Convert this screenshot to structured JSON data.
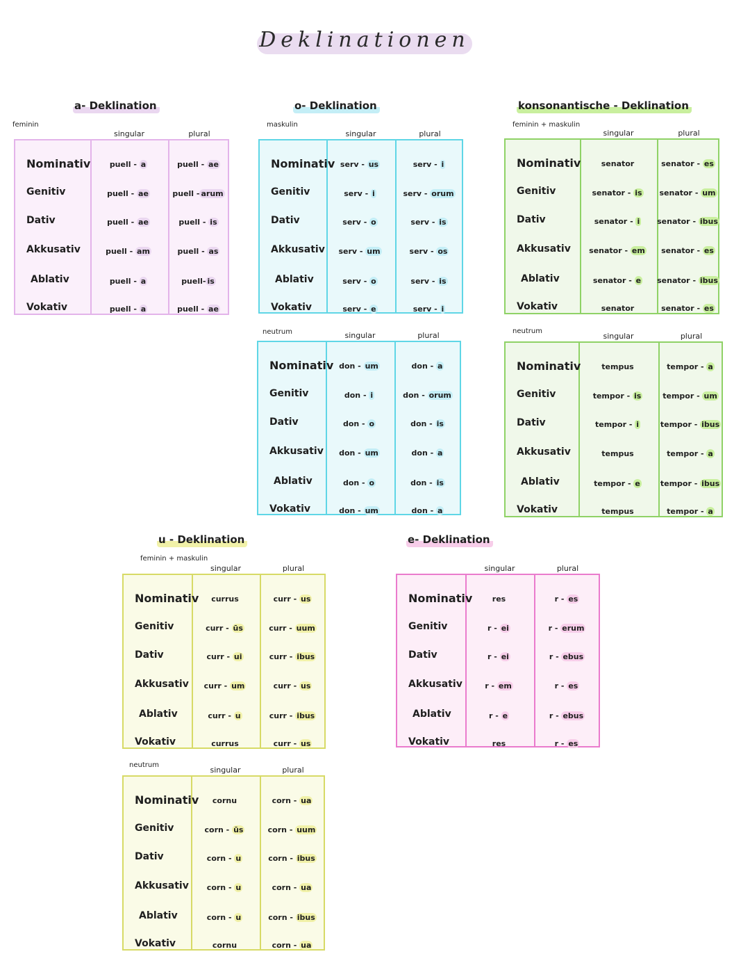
{
  "title": "Deklinationen",
  "colors": {
    "a": {
      "fill": "#fbf0fb",
      "border": "#e3b3ea",
      "hl": "#ead7f0"
    },
    "o": {
      "fill": "#e9f9fb",
      "border": "#5fd6e6",
      "hl": "#c4eef6"
    },
    "kons": {
      "fill": "#f0f8ea",
      "border": "#8fd266",
      "hl": "#c9ef9e"
    },
    "u": {
      "fill": "#fafbe7",
      "border": "#d7da66",
      "hl": "#f1f1a8"
    },
    "e": {
      "fill": "#fdeef8",
      "border": "#ea7bcd",
      "hl": "#f7cde9"
    }
  },
  "blocks": [
    {
      "title": "a- Deklination",
      "sub": "feminin",
      "singular": "singular",
      "plural": "plural",
      "rows": [
        {
          "case": "Nominativ",
          "sg": [
            "puell - ",
            "a"
          ],
          "pl": [
            "puell - ",
            "ae"
          ]
        },
        {
          "case": "Genitiv",
          "sg": [
            "puell - ",
            "ae"
          ],
          "pl": [
            "puell -",
            "arum"
          ]
        },
        {
          "case": "Dativ",
          "sg": [
            "puell - ",
            "ae"
          ],
          "pl": [
            "puell - ",
            "is"
          ]
        },
        {
          "case": "Akkusativ",
          "sg": [
            "puell - ",
            "am"
          ],
          "pl": [
            "puell - ",
            "as"
          ]
        },
        {
          "case": "Ablativ",
          "sg": [
            "puell - ",
            "a"
          ],
          "pl": [
            "puell-",
            "is"
          ]
        },
        {
          "case": "Vokativ",
          "sg": [
            "puell - ",
            "a"
          ],
          "pl": [
            "puell - ",
            "ae"
          ]
        }
      ]
    },
    {
      "title": "o- Deklination",
      "sub": "maskulin",
      "singular": "singular",
      "plural": "plural",
      "rows": [
        {
          "case": "Nominativ",
          "sg": [
            "serv - ",
            "us"
          ],
          "pl": [
            "serv - ",
            "i"
          ]
        },
        {
          "case": "Genitiv",
          "sg": [
            "serv - ",
            "i"
          ],
          "pl": [
            "serv - ",
            "orum"
          ]
        },
        {
          "case": "Dativ",
          "sg": [
            "serv - ",
            "o"
          ],
          "pl": [
            "serv - ",
            "is"
          ]
        },
        {
          "case": "Akkusativ",
          "sg": [
            "serv - ",
            "um"
          ],
          "pl": [
            "serv - ",
            "os"
          ]
        },
        {
          "case": "Ablativ",
          "sg": [
            "serv - ",
            "o"
          ],
          "pl": [
            "serv - ",
            "is"
          ]
        },
        {
          "case": "Vokativ",
          "sg": [
            "serv - ",
            "e"
          ],
          "pl": [
            "serv - ",
            "i"
          ]
        }
      ]
    },
    {
      "title": "",
      "sub": "neutrum",
      "singular": "singular",
      "plural": "plural",
      "rows": [
        {
          "case": "Nominativ",
          "sg": [
            "don - ",
            "um"
          ],
          "pl": [
            "don - ",
            "a"
          ]
        },
        {
          "case": "Genitiv",
          "sg": [
            "don - ",
            "i"
          ],
          "pl": [
            "don - ",
            "orum"
          ]
        },
        {
          "case": "Dativ",
          "sg": [
            "don - ",
            "o"
          ],
          "pl": [
            "don - ",
            "is"
          ]
        },
        {
          "case": "Akkusativ",
          "sg": [
            "don - ",
            "um"
          ],
          "pl": [
            "don - ",
            "a"
          ]
        },
        {
          "case": "Ablativ",
          "sg": [
            "don - ",
            "o"
          ],
          "pl": [
            "don - ",
            "is"
          ]
        },
        {
          "case": "Vokativ",
          "sg": [
            "don - ",
            "um"
          ],
          "pl": [
            "don - ",
            "a"
          ]
        }
      ]
    },
    {
      "title": "konsonantische - Deklination",
      "sub": "feminin + maskulin",
      "singular": "singular",
      "plural": "plural",
      "rows": [
        {
          "case": "Nominativ",
          "sg": [
            "senator",
            ""
          ],
          "pl": [
            "senator - ",
            "es"
          ]
        },
        {
          "case": "Genitiv",
          "sg": [
            "senator - ",
            "is"
          ],
          "pl": [
            "senator - ",
            "um"
          ]
        },
        {
          "case": "Dativ",
          "sg": [
            "senator - ",
            "i"
          ],
          "pl": [
            "senator - ",
            "ibus"
          ]
        },
        {
          "case": "Akkusativ",
          "sg": [
            "senator - ",
            "em"
          ],
          "pl": [
            "senator - ",
            "es"
          ]
        },
        {
          "case": "Ablativ",
          "sg": [
            "senator - ",
            "e"
          ],
          "pl": [
            "senator - ",
            "ibus"
          ]
        },
        {
          "case": "Vokativ",
          "sg": [
            "senator",
            ""
          ],
          "pl": [
            "senator - ",
            "es"
          ]
        }
      ]
    },
    {
      "title": "",
      "sub": "neutrum",
      "singular": "singular",
      "plural": "plural",
      "rows": [
        {
          "case": "Nominativ",
          "sg": [
            "tempus",
            ""
          ],
          "pl": [
            "tempor - ",
            "a"
          ]
        },
        {
          "case": "Genitiv",
          "sg": [
            "tempor - ",
            "is"
          ],
          "pl": [
            "tempor - ",
            "um"
          ]
        },
        {
          "case": "Dativ",
          "sg": [
            "tempor - ",
            "i"
          ],
          "pl": [
            "tempor - ",
            "ibus"
          ]
        },
        {
          "case": "Akkusativ",
          "sg": [
            "tempus",
            ""
          ],
          "pl": [
            "tempor - ",
            "a"
          ]
        },
        {
          "case": "Ablativ",
          "sg": [
            "tempor - ",
            "e"
          ],
          "pl": [
            "tempor - ",
            "ibus"
          ]
        },
        {
          "case": "Vokativ",
          "sg": [
            "tempus",
            ""
          ],
          "pl": [
            "tempor - ",
            "a"
          ]
        }
      ]
    },
    {
      "title": "u - Deklination",
      "sub": "feminin + maskulin",
      "singular": "singular",
      "plural": "plural",
      "rows": [
        {
          "case": "Nominativ",
          "sg": [
            "currus",
            ""
          ],
          "pl": [
            "curr - ",
            "us"
          ]
        },
        {
          "case": "Genitiv",
          "sg": [
            "curr - ",
            "ūs"
          ],
          "pl": [
            "curr - ",
            "uum"
          ]
        },
        {
          "case": "Dativ",
          "sg": [
            "curr - ",
            "ui"
          ],
          "pl": [
            "curr - ",
            "ibus"
          ]
        },
        {
          "case": "Akkusativ",
          "sg": [
            "curr - ",
            "um"
          ],
          "pl": [
            "curr - ",
            "us"
          ]
        },
        {
          "case": "Ablativ",
          "sg": [
            "curr - ",
            "u"
          ],
          "pl": [
            "curr - ",
            "ibus"
          ]
        },
        {
          "case": "Vokativ",
          "sg": [
            "currus",
            ""
          ],
          "pl": [
            "curr - ",
            "us"
          ]
        }
      ]
    },
    {
      "title": "",
      "sub": "neutrum",
      "singular": "singular",
      "plural": "plural",
      "rows": [
        {
          "case": "Nominativ",
          "sg": [
            "cornu",
            ""
          ],
          "pl": [
            "corn - ",
            "ua"
          ]
        },
        {
          "case": "Genitiv",
          "sg": [
            "corn - ",
            "ūs"
          ],
          "pl": [
            "corn - ",
            "uum"
          ]
        },
        {
          "case": "Dativ",
          "sg": [
            "corn - ",
            "u"
          ],
          "pl": [
            "corn - ",
            "ibus"
          ]
        },
        {
          "case": "Akkusativ",
          "sg": [
            "corn - ",
            "u"
          ],
          "pl": [
            "corn - ",
            "ua"
          ]
        },
        {
          "case": "Ablativ",
          "sg": [
            "corn - ",
            "u"
          ],
          "pl": [
            "corn - ",
            "ibus"
          ]
        },
        {
          "case": "Vokativ",
          "sg": [
            "cornu",
            ""
          ],
          "pl": [
            "corn - ",
            "ua"
          ]
        }
      ]
    },
    {
      "title": "e- Deklination",
      "sub": "",
      "singular": "singular",
      "plural": "plural",
      "rows": [
        {
          "case": "Nominativ",
          "sg": [
            "res",
            ""
          ],
          "pl": [
            "r - ",
            "es"
          ]
        },
        {
          "case": "Genitiv",
          "sg": [
            "r - ",
            "ei"
          ],
          "pl": [
            "r - ",
            "erum"
          ]
        },
        {
          "case": "Dativ",
          "sg": [
            "r - ",
            "ei"
          ],
          "pl": [
            "r - ",
            "ebus"
          ]
        },
        {
          "case": "Akkusativ",
          "sg": [
            "r - ",
            "em"
          ],
          "pl": [
            "r - ",
            "es"
          ]
        },
        {
          "case": "Ablativ",
          "sg": [
            "r - ",
            "e"
          ],
          "pl": [
            "r - ",
            "ebus"
          ]
        },
        {
          "case": "Vokativ",
          "sg": [
            "res",
            ""
          ],
          "pl": [
            "r - ",
            "es"
          ]
        }
      ]
    }
  ]
}
